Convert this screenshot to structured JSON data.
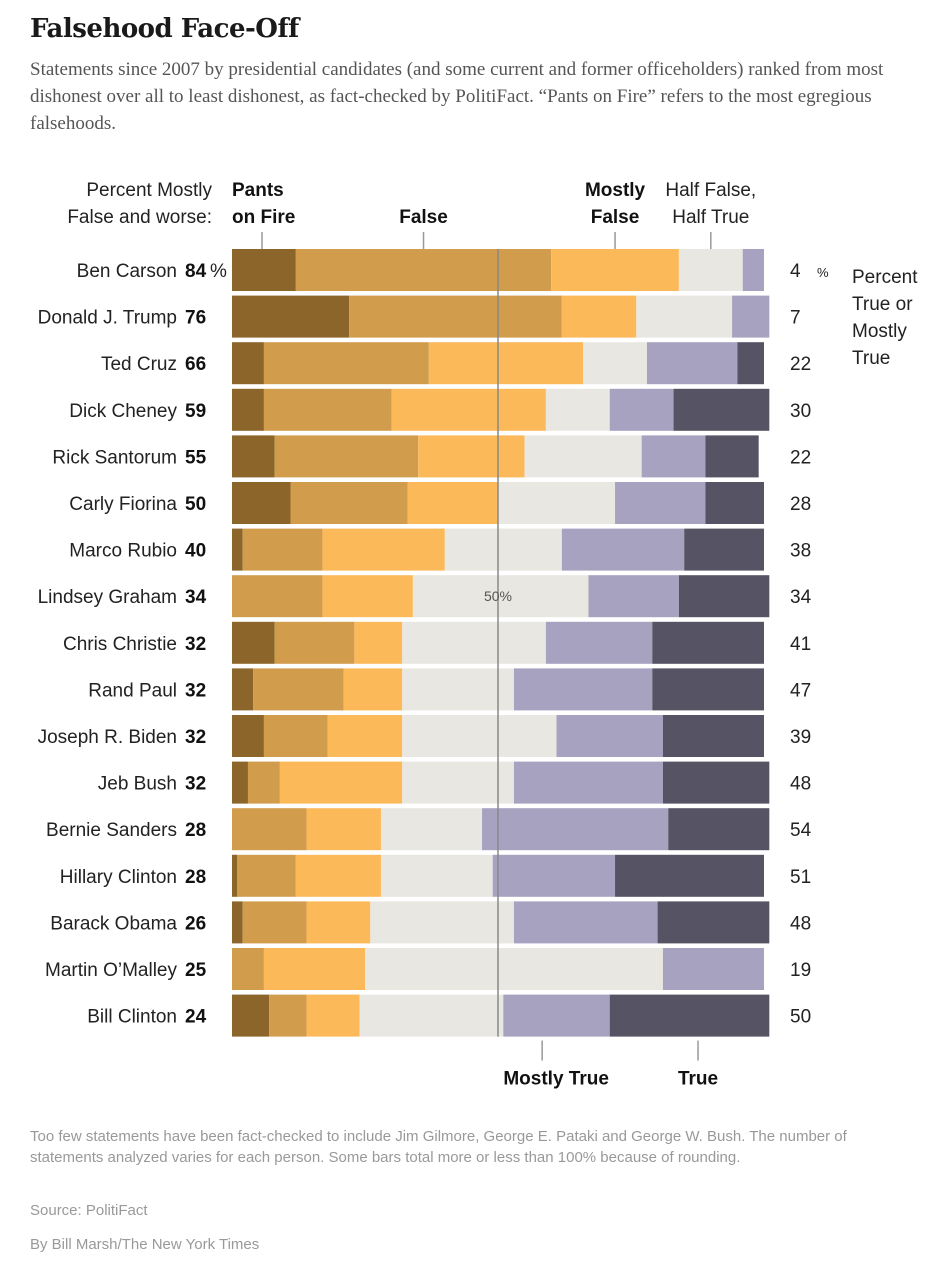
{
  "chart_data": {
    "type": "bar",
    "stacked": true,
    "title": "Falsehood Face-Off",
    "subtitle": "Statements since 2007 by presidential candidates (and some current and former officeholders) ranked from most dishonest over all to least dishonest, as fact-checked by PolitiFact. “Pants on Fire” refers to the most egregious falsehoods.",
    "left_header_line1": "Percent Mostly",
    "left_header_line2": "False and worse:",
    "right_header_line1": "Percent",
    "right_header_line2": "True or",
    "right_header_line3": "Mostly",
    "right_header_line4": "True",
    "midline_label": "50%",
    "percent_sign": "%",
    "category_labels": {
      "pants_on_fire": [
        "Pants",
        "on Fire"
      ],
      "false": [
        "False"
      ],
      "mostly_false": [
        "Mostly",
        "False"
      ],
      "half_true": [
        "Half False,",
        "Half True"
      ],
      "mostly_true": [
        "Mostly True"
      ],
      "true": [
        "True"
      ]
    },
    "colors": {
      "pants_on_fire": "#8c652b",
      "false": "#d19d4d",
      "mostly_false": "#fbb95a",
      "half_true": "#e9e7e1",
      "mostly_true": "#a6a2c0",
      "true": "#555364",
      "midline": "#888888",
      "tick": "#999999"
    },
    "series_order": [
      "pants_on_fire",
      "false",
      "mostly_false",
      "half_true",
      "mostly_true",
      "true"
    ],
    "rows": [
      {
        "name": "Ben Carson",
        "mostly_false_or_worse": 84,
        "true_or_mostly_true": 4,
        "values": [
          12,
          48,
          24,
          12,
          4,
          0
        ]
      },
      {
        "name": "Donald J. Trump",
        "mostly_false_or_worse": 76,
        "true_or_mostly_true": 7,
        "values": [
          22,
          40,
          14,
          18,
          7,
          0
        ]
      },
      {
        "name": "Ted Cruz",
        "mostly_false_or_worse": 66,
        "true_or_mostly_true": 22,
        "values": [
          6,
          31,
          29,
          12,
          17,
          5
        ]
      },
      {
        "name": "Dick Cheney",
        "mostly_false_or_worse": 59,
        "true_or_mostly_true": 30,
        "values": [
          6,
          24,
          29,
          12,
          12,
          18
        ]
      },
      {
        "name": "Rick Santorum",
        "mostly_false_or_worse": 55,
        "true_or_mostly_true": 22,
        "values": [
          8,
          27,
          20,
          22,
          12,
          10
        ]
      },
      {
        "name": "Carly Fiorina",
        "mostly_false_or_worse": 50,
        "true_or_mostly_true": 28,
        "values": [
          11,
          22,
          17,
          22,
          17,
          11
        ]
      },
      {
        "name": "Marco Rubio",
        "mostly_false_or_worse": 40,
        "true_or_mostly_true": 38,
        "values": [
          2,
          15,
          23,
          22,
          23,
          15
        ]
      },
      {
        "name": "Lindsey Graham",
        "mostly_false_or_worse": 34,
        "true_or_mostly_true": 34,
        "values": [
          0,
          17,
          17,
          33,
          17,
          17
        ]
      },
      {
        "name": "Chris Christie",
        "mostly_false_or_worse": 32,
        "true_or_mostly_true": 41,
        "values": [
          8,
          15,
          9,
          27,
          20,
          21
        ]
      },
      {
        "name": "Rand Paul",
        "mostly_false_or_worse": 32,
        "true_or_mostly_true": 47,
        "values": [
          4,
          17,
          11,
          21,
          26,
          21
        ]
      },
      {
        "name": "Joseph R. Biden",
        "mostly_false_or_worse": 32,
        "true_or_mostly_true": 39,
        "values": [
          6,
          12,
          14,
          29,
          20,
          19
        ]
      },
      {
        "name": "Jeb Bush",
        "mostly_false_or_worse": 32,
        "true_or_mostly_true": 48,
        "values": [
          3,
          6,
          23,
          21,
          28,
          20
        ]
      },
      {
        "name": "Bernie Sanders",
        "mostly_false_or_worse": 28,
        "true_or_mostly_true": 54,
        "values": [
          0,
          14,
          14,
          19,
          35,
          19
        ]
      },
      {
        "name": "Hillary Clinton",
        "mostly_false_or_worse": 28,
        "true_or_mostly_true": 51,
        "values": [
          1,
          11,
          16,
          21,
          23,
          28
        ]
      },
      {
        "name": "Barack Obama",
        "mostly_false_or_worse": 26,
        "true_or_mostly_true": 48,
        "values": [
          2,
          12,
          12,
          27,
          27,
          21
        ]
      },
      {
        "name": "Martin O’Malley",
        "mostly_false_or_worse": 25,
        "true_or_mostly_true": 19,
        "values": [
          0,
          6,
          19,
          56,
          19,
          0
        ]
      },
      {
        "name": "Bill Clinton",
        "mostly_false_or_worse": 24,
        "true_or_mostly_true": 50,
        "values": [
          7,
          7,
          10,
          27,
          20,
          30
        ]
      }
    ],
    "xlim": [
      0,
      100
    ]
  },
  "footnote": "Too few statements have been fact-checked to include Jim Gilmore, George E. Pataki and George W. Bush. The number of statements analyzed varies for each person. Some bars total more or less than 100% because of rounding.",
  "source": "Source: PolitiFact",
  "credit": "By Bill Marsh/The New York Times"
}
